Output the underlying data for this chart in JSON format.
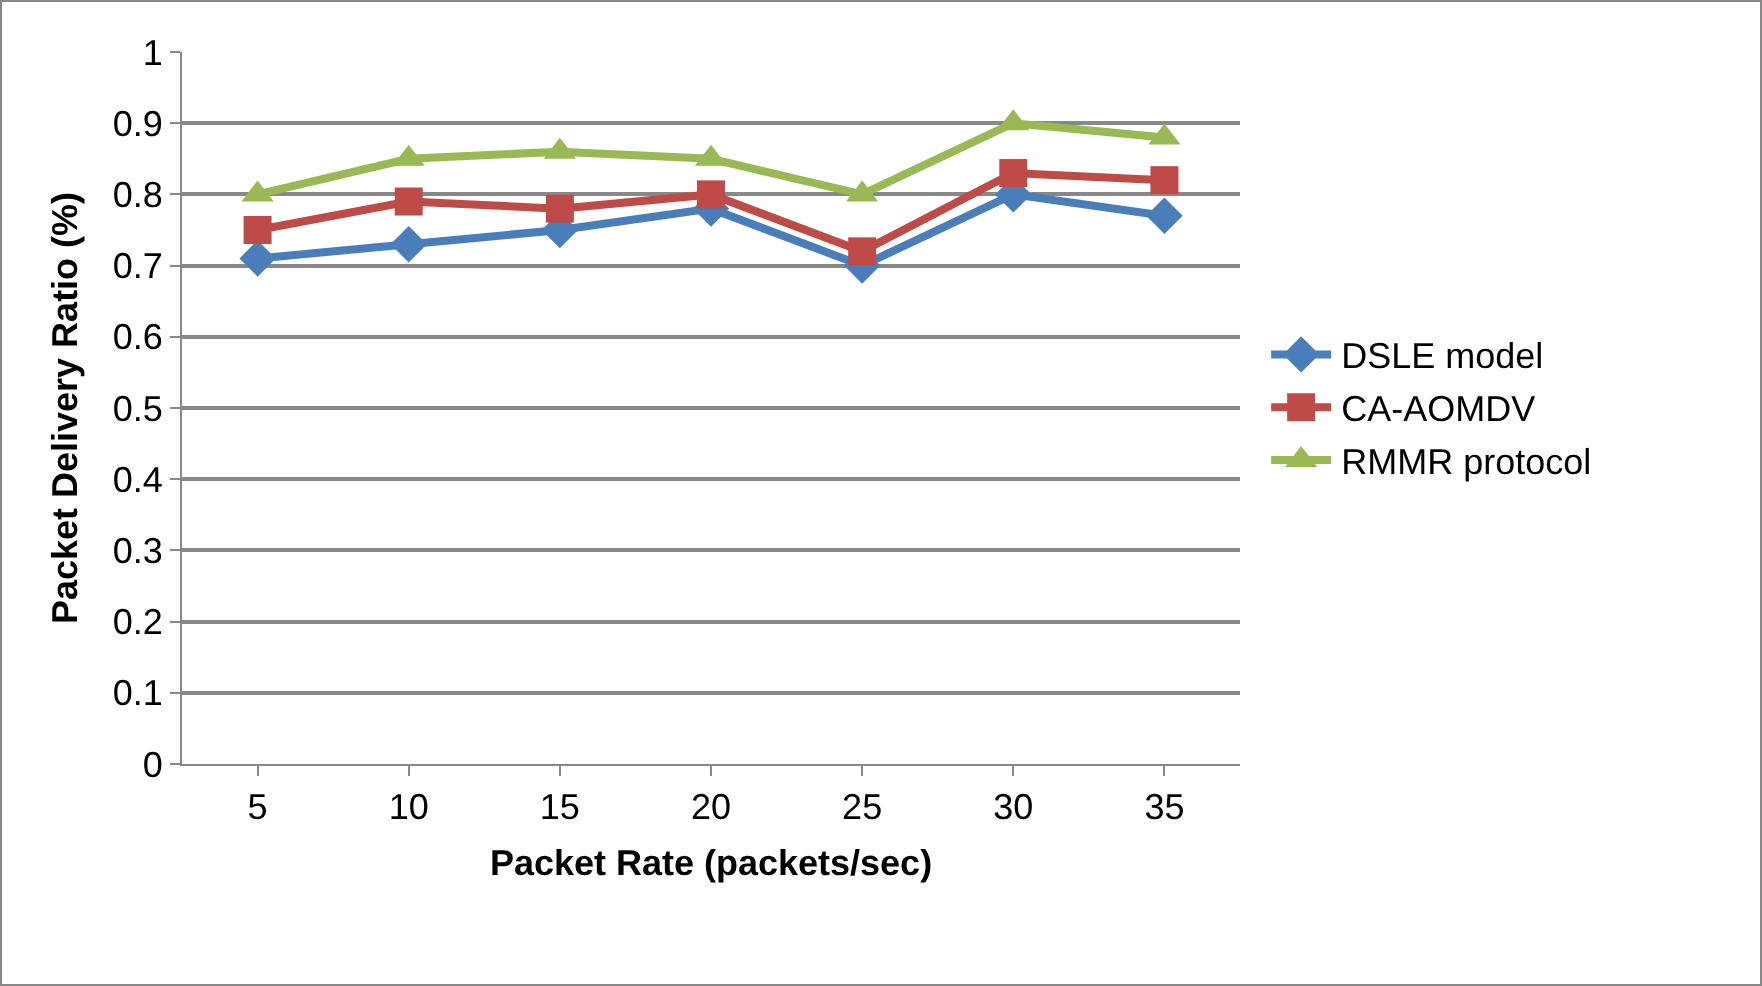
{
  "chart_data": {
    "type": "line",
    "xlabel": "Packet Rate (packets/sec)",
    "ylabel": "Packet Delivery Ratio (%)",
    "categories": [
      "5",
      "10",
      "15",
      "20",
      "25",
      "30",
      "35"
    ],
    "series": [
      {
        "name": "DSLE model",
        "color": "#4a7ebb",
        "marker": "diamond",
        "values": [
          0.71,
          0.73,
          0.75,
          0.78,
          0.7,
          0.8,
          0.77
        ]
      },
      {
        "name": "CA-AOMDV",
        "color": "#be4b48",
        "marker": "square",
        "values": [
          0.75,
          0.79,
          0.78,
          0.8,
          0.72,
          0.83,
          0.82
        ]
      },
      {
        "name": "RMMR protocol",
        "color": "#98b954",
        "marker": "triangle",
        "values": [
          0.8,
          0.85,
          0.86,
          0.85,
          0.8,
          0.9,
          0.88
        ]
      }
    ],
    "ylim": [
      0,
      1
    ],
    "yticks": [
      0,
      0.1,
      0.2,
      0.3,
      0.4,
      0.5,
      0.6,
      0.7,
      0.8,
      0.9,
      1
    ],
    "grid": "y",
    "legend": "right"
  }
}
